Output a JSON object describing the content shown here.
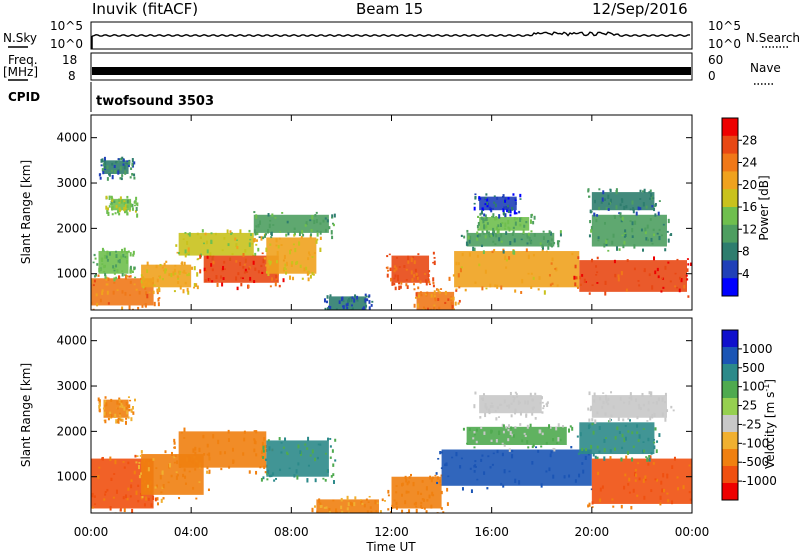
{
  "header": {
    "station": "Inuvik (fitACF)",
    "beam": "Beam 15",
    "date": "12/Sep/2016"
  },
  "labels": {
    "nsky": "N.Sky",
    "nsearch": "N.Search",
    "freq_line1": "Freq.",
    "freq_line2": "[MHz]",
    "nave": "Nave",
    "cpid": "CPID",
    "cpid_value": "twofsound 3503",
    "y_axis": "Slant Range [km]",
    "x_axis": "Time UT",
    "power_bar": "Power [dB]",
    "velocity_bar": "Velocity [m s",
    "velocity_sup": "-1",
    "velocity_close": "]"
  },
  "noise_ticks": {
    "left": [
      "10^5",
      "10^0"
    ],
    "right": [
      "10^5",
      "10^0"
    ]
  },
  "freq_ticks": {
    "left": [
      "18",
      "8"
    ],
    "right": [
      "60",
      "0"
    ]
  },
  "colors": {
    "power": [
      "#0000ff",
      "#2040b8",
      "#2e7d6e",
      "#4e9e60",
      "#6fbf4e",
      "#c9c21d",
      "#f0a21e",
      "#f07818",
      "#e84814",
      "#ee0000"
    ],
    "velocity": [
      "#1010cc",
      "#1b55b5",
      "#2c8a8a",
      "#4faa4f",
      "#96d050",
      "#c8c8c8",
      "#f0b030",
      "#f08010",
      "#f05010",
      "#ee0000"
    ]
  },
  "chart_data": {
    "type": "heatmap",
    "x": [
      "00:00",
      "04:00",
      "08:00",
      "12:00",
      "16:00",
      "20:00",
      "00:00"
    ],
    "xlabel": "Time UT",
    "xlim": [
      "00:00",
      "24:00"
    ],
    "y_ticks": [
      1000,
      2000,
      3000,
      4000
    ],
    "ylabel": "Slant Range [km]",
    "ylim": [
      200,
      4500
    ],
    "panels": [
      {
        "name": "Power",
        "colorbar_label": "Power [dB]",
        "colorbar_ticks": [
          "4",
          "8",
          "12",
          "16",
          "20",
          "24",
          "28"
        ],
        "regions": [
          {
            "t": [
              0.0,
              2.5
            ],
            "r": [
              300,
              900
            ],
            "value": 24
          },
          {
            "t": [
              0.3,
              1.5
            ],
            "r": [
              1000,
              1500
            ],
            "value": 14
          },
          {
            "t": [
              0.8,
              1.6
            ],
            "r": [
              2400,
              2650
            ],
            "value": 16
          },
          {
            "t": [
              0.5,
              1.5
            ],
            "r": [
              3200,
              3500
            ],
            "value": 10
          },
          {
            "t": [
              2.0,
              4.0
            ],
            "r": [
              700,
              1200
            ],
            "value": 20
          },
          {
            "t": [
              3.5,
              6.5
            ],
            "r": [
              1400,
              1900
            ],
            "value": 18
          },
          {
            "t": [
              4.5,
              7.5
            ],
            "r": [
              800,
              1400
            ],
            "value": 28
          },
          {
            "t": [
              7.0,
              9.0
            ],
            "r": [
              1000,
              1800
            ],
            "value": 20
          },
          {
            "t": [
              6.5,
              9.5
            ],
            "r": [
              1900,
              2300
            ],
            "value": 12
          },
          {
            "t": [
              9.5,
              11.0
            ],
            "r": [
              200,
              500
            ],
            "value": 8
          },
          {
            "t": [
              12.0,
              13.5
            ],
            "r": [
              800,
              1400
            ],
            "value": 26
          },
          {
            "t": [
              13.0,
              14.5
            ],
            "r": [
              200,
              600
            ],
            "value": 24
          },
          {
            "t": [
              14.5,
              19.5
            ],
            "r": [
              700,
              1500
            ],
            "value": 22
          },
          {
            "t": [
              15.0,
              18.5
            ],
            "r": [
              1600,
              1900
            ],
            "value": 12
          },
          {
            "t": [
              15.5,
              17.5
            ],
            "r": [
              1950,
              2250
            ],
            "value": 14
          },
          {
            "t": [
              15.5,
              17.0
            ],
            "r": [
              2400,
              2700
            ],
            "value": 6
          },
          {
            "t": [
              19.5,
              23.8
            ],
            "r": [
              600,
              1300
            ],
            "value": 28
          },
          {
            "t": [
              20.0,
              23.0
            ],
            "r": [
              1600,
              2300
            ],
            "value": 12
          },
          {
            "t": [
              20.0,
              22.5
            ],
            "r": [
              2400,
              2800
            ],
            "value": 10
          }
        ]
      },
      {
        "name": "Velocity",
        "colorbar_label": "Velocity [m s-1]",
        "colorbar_ticks": [
          "1000",
          "500",
          "100",
          "25",
          "-25",
          "-100",
          "-500",
          "-1000"
        ],
        "regions": [
          {
            "t": [
              0.0,
              2.5
            ],
            "r": [
              300,
              1400
            ],
            "value": -500
          },
          {
            "t": [
              0.5,
              1.5
            ],
            "r": [
              2300,
              2700
            ],
            "value": -100
          },
          {
            "t": [
              2.0,
              4.5
            ],
            "r": [
              600,
              1500
            ],
            "value": -100
          },
          {
            "t": [
              3.5,
              7.0
            ],
            "r": [
              1200,
              2000
            ],
            "value": -300
          },
          {
            "t": [
              7.0,
              9.5
            ],
            "r": [
              1000,
              1800
            ],
            "value": 100
          },
          {
            "t": [
              9.0,
              11.5
            ],
            "r": [
              200,
              500
            ],
            "value": -100
          },
          {
            "t": [
              12.0,
              14.0
            ],
            "r": [
              300,
              1000
            ],
            "value": -200
          },
          {
            "t": [
              14.0,
              20.0
            ],
            "r": [
              800,
              1600
            ],
            "value": 800
          },
          {
            "t": [
              15.0,
              19.0
            ],
            "r": [
              1700,
              2100
            ],
            "value": 25
          },
          {
            "t": [
              15.5,
              18.0
            ],
            "r": [
              2400,
              2800
            ],
            "value": 0
          },
          {
            "t": [
              20.0,
              24.0
            ],
            "r": [
              400,
              1400
            ],
            "value": -500
          },
          {
            "t": [
              19.5,
              22.5
            ],
            "r": [
              1500,
              2200
            ],
            "value": 100
          },
          {
            "t": [
              20.0,
              23.0
            ],
            "r": [
              2300,
              2800
            ],
            "value": 0
          }
        ]
      }
    ]
  }
}
